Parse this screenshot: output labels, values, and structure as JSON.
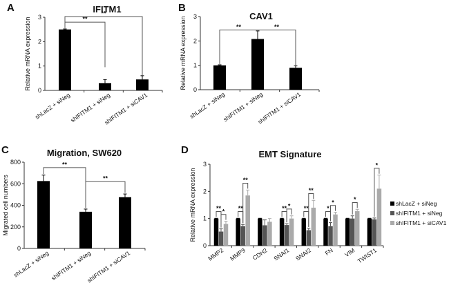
{
  "chart_data": [
    {
      "panel": "A",
      "type": "bar",
      "title": "IFITM1",
      "xlabel": "",
      "ylabel": "Relative mRNA expression",
      "ylim": [
        0,
        3
      ],
      "yticks": [
        0,
        1,
        2,
        3
      ],
      "ytick_labels": [
        "0",
        "1",
        "2",
        "3"
      ],
      "categories": [
        "shLacZ + siNeg",
        "shIFITM1 + siNeg",
        "shIFITM1 + siCAV1"
      ],
      "series": [
        {
          "name": "mean",
          "values": [
            2.5,
            0.3,
            0.45
          ],
          "errors": [
            0.02,
            0.14,
            0.15
          ],
          "color": "#000000"
        }
      ],
      "significance": [
        {
          "from": 0,
          "to": 1,
          "level": 2.8,
          "legs": [
            2.55,
            0.95
          ],
          "label": "**"
        },
        {
          "from": 0,
          "to": 2,
          "level": 3.03,
          "legs": [
            2.8,
            0.6
          ],
          "label": "**"
        }
      ]
    },
    {
      "panel": "B",
      "type": "bar",
      "title": "CAV1",
      "xlabel": "",
      "ylabel": "Relative mRNA expression",
      "ylim": [
        0,
        3
      ],
      "yticks": [
        0,
        1,
        2,
        3
      ],
      "ytick_labels": [
        "0",
        "1",
        "2",
        "3"
      ],
      "categories": [
        "shLacZ + siNeg",
        "shIFITM1 + siNeg",
        "shIFITM1 + siCAV1"
      ],
      "series": [
        {
          "name": "mean",
          "values": [
            1.0,
            2.08,
            0.9
          ],
          "errors": [
            0.02,
            0.33,
            0.08
          ],
          "color": "#000000"
        }
      ],
      "significance": [
        {
          "from": 0,
          "to": 1,
          "level": 2.45,
          "legs": [
            1.05,
            2.45
          ],
          "label": "**"
        },
        {
          "from": 1,
          "to": 2,
          "level": 2.45,
          "legs": [
            2.45,
            1.0
          ],
          "label": "**"
        }
      ]
    },
    {
      "panel": "C",
      "type": "bar",
      "title": "Migration, SW620",
      "xlabel": "",
      "ylabel": "Migrated cell numbers",
      "ylim": [
        0,
        800
      ],
      "yticks": [
        0,
        200,
        400,
        600,
        800
      ],
      "ytick_labels": [
        "0",
        "200",
        "400",
        "600",
        "800"
      ],
      "categories": [
        "shLacZ + siNeg",
        "shIFITM1 + siNeg",
        "shIFITM1 + siCAV1"
      ],
      "series": [
        {
          "name": "mean",
          "values": [
            625,
            340,
            475
          ],
          "errors": [
            55,
            25,
            30
          ],
          "color": "#000000"
        }
      ],
      "significance": [
        {
          "from": 0,
          "to": 1,
          "level": 750,
          "legs": [
            690,
            375
          ],
          "label": "**"
        },
        {
          "from": 1,
          "to": 2,
          "level": 620,
          "legs": [
            620,
            515
          ],
          "label": "**"
        }
      ]
    },
    {
      "panel": "D",
      "type": "bar",
      "title": "EMT Signature",
      "xlabel": "",
      "ylabel": "Relative mRNA expression",
      "ylim": [
        0,
        3
      ],
      "yticks": [
        0,
        1,
        2,
        3
      ],
      "ytick_labels": [
        "0",
        "1",
        "2",
        "3"
      ],
      "categories": [
        "MMP2",
        "MMP9",
        "CDH2",
        "SNAI1",
        "SNAI2",
        "FN",
        "VIM",
        "TWIST1"
      ],
      "series": [
        {
          "name": "shLacZ + siNeg",
          "color": "#000000",
          "values": [
            1,
            1,
            1,
            1,
            1,
            1,
            1,
            1
          ],
          "errors": [
            0.01,
            0.01,
            0.01,
            0.01,
            0.01,
            0.01,
            0.01,
            0.01
          ]
        },
        {
          "name": "shIFITM1 + siNeg",
          "color": "#555555",
          "values": [
            0.52,
            0.72,
            0.75,
            0.76,
            0.57,
            0.72,
            1.0,
            0.97
          ],
          "errors": [
            0.1,
            0.06,
            0.2,
            0.05,
            0.07,
            0.13,
            0.1,
            0.05
          ]
        },
        {
          "name": "shIFITM1 + siCAV1",
          "color": "#aaaaaa",
          "values": [
            0.8,
            1.85,
            0.88,
            1.0,
            1.4,
            1.15,
            1.27,
            2.1
          ],
          "errors": [
            0.1,
            0.2,
            0.12,
            0.1,
            0.27,
            0.08,
            0.07,
            0.5
          ]
        }
      ],
      "legend_position": "right",
      "significance": [
        {
          "group": 0,
          "from": 0,
          "to": 1,
          "label": "**"
        },
        {
          "group": 0,
          "from": 1,
          "to": 2,
          "label": "*"
        },
        {
          "group": 1,
          "from": 0,
          "to": 1,
          "label": "**"
        },
        {
          "group": 1,
          "from": 1,
          "to": 2,
          "label": "**"
        },
        {
          "group": 3,
          "from": 0,
          "to": 1,
          "label": "**"
        },
        {
          "group": 3,
          "from": 1,
          "to": 2,
          "label": "*"
        },
        {
          "group": 4,
          "from": 0,
          "to": 1,
          "label": "**"
        },
        {
          "group": 4,
          "from": 1,
          "to": 2,
          "label": "**"
        },
        {
          "group": 5,
          "from": 0,
          "to": 1,
          "label": "*"
        },
        {
          "group": 5,
          "from": 1,
          "to": 2,
          "label": "*"
        },
        {
          "group": 6,
          "from": 1,
          "to": 2,
          "label": "*"
        },
        {
          "group": 7,
          "from": 1,
          "to": 2,
          "label": "*"
        }
      ]
    }
  ]
}
